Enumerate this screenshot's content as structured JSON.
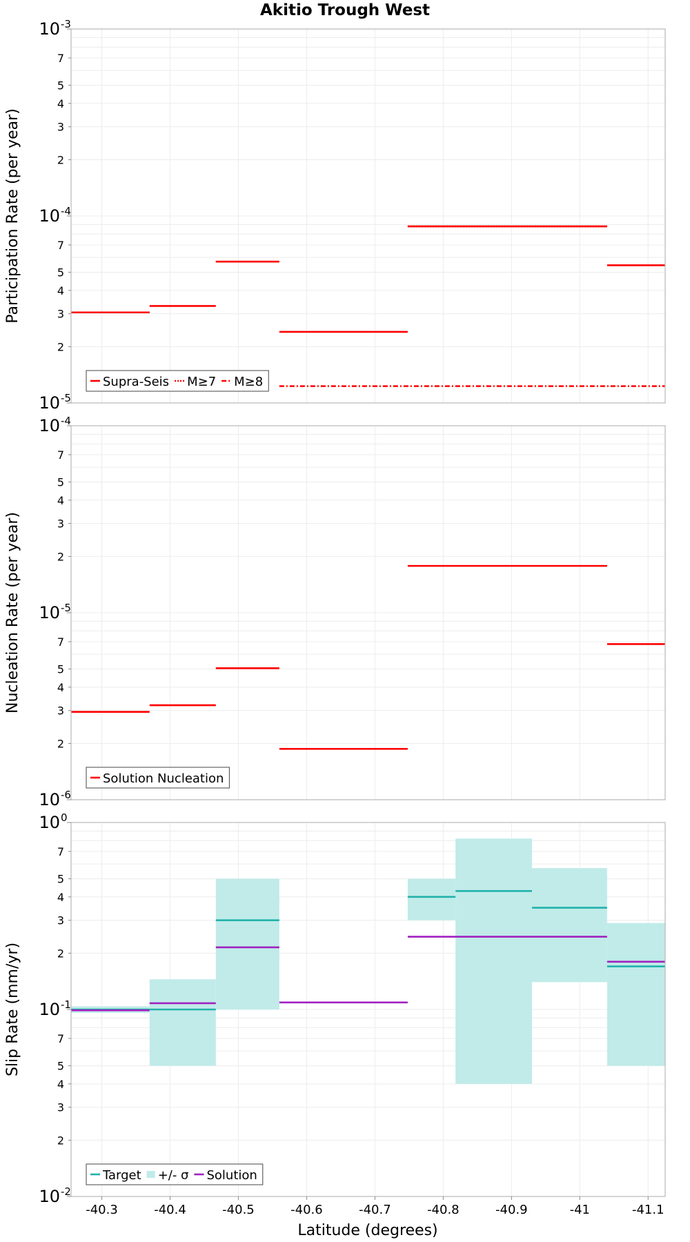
{
  "chart_data": [
    {
      "type": "line",
      "title": "Akitio Trough West",
      "ylabel": "Participation Rate (per year)",
      "xlabel": "",
      "yscale": "log",
      "ylim": [
        1e-05,
        0.001
      ],
      "xlim": [
        -40.255,
        -41.125
      ],
      "x_ticks": [
        -40.3,
        -40.4,
        -40.5,
        -40.6,
        -40.7,
        -40.8,
        -40.9,
        -41,
        -41.1
      ],
      "y_decades": [
        -5,
        -4,
        -3
      ],
      "y_minor_ticks": [
        2,
        3,
        4,
        5,
        7
      ],
      "grid": true,
      "legend": {
        "placement": "bottom-left",
        "entries": [
          "Supra-Seis",
          "M≥7",
          "M≥8"
        ]
      },
      "series": [
        {
          "name": "Supra-Seis",
          "color": "#ff0000",
          "style": "solid",
          "segments": [
            {
              "x": [
                -40.255,
                -40.37
              ],
              "y": 3.05e-05
            },
            {
              "x": [
                -40.37,
                -40.467
              ],
              "y": 3.3e-05
            },
            {
              "x": [
                -40.467,
                -40.56
              ],
              "y": 5.7e-05
            },
            {
              "x": [
                -40.56,
                -40.748
              ],
              "y": 2.4e-05
            },
            {
              "x": [
                -40.748,
                -41.04
              ],
              "y": 8.8e-05
            },
            {
              "x": [
                -41.04,
                -41.125
              ],
              "y": 5.45e-05
            }
          ]
        },
        {
          "name": "M≥7",
          "color": "#ff0000",
          "style": "dotted",
          "segments": [
            {
              "x": [
                -40.255,
                -40.37
              ],
              "y": 3.05e-05
            },
            {
              "x": [
                -40.467,
                -40.56
              ],
              "y": 5.7e-05
            },
            {
              "x": [
                -40.748,
                -41.04
              ],
              "y": 8.8e-05
            }
          ]
        },
        {
          "name": "M≥8",
          "color": "#ff0000",
          "style": "dashdot",
          "segments": [
            {
              "x": [
                -40.56,
                -41.125
              ],
              "y": 1.23e-05
            }
          ]
        }
      ]
    },
    {
      "type": "line",
      "title": "",
      "ylabel": "Nucleation Rate (per year)",
      "xlabel": "",
      "yscale": "log",
      "ylim": [
        1e-06,
        0.0001
      ],
      "xlim": [
        -40.255,
        -41.125
      ],
      "x_ticks": [
        -40.3,
        -40.4,
        -40.5,
        -40.6,
        -40.7,
        -40.8,
        -40.9,
        -41,
        -41.1
      ],
      "y_decades": [
        -6,
        -5,
        -4
      ],
      "y_minor_ticks": [
        2,
        3,
        4,
        5,
        7
      ],
      "grid": true,
      "legend": {
        "placement": "bottom-left",
        "entries": [
          "Solution Nucleation"
        ]
      },
      "series": [
        {
          "name": "Solution Nucleation",
          "color": "#ff0000",
          "style": "solid",
          "segments": [
            {
              "x": [
                -40.255,
                -40.37
              ],
              "y": 2.95e-06
            },
            {
              "x": [
                -40.37,
                -40.467
              ],
              "y": 3.2e-06
            },
            {
              "x": [
                -40.467,
                -40.56
              ],
              "y": 5.05e-06
            },
            {
              "x": [
                -40.56,
                -40.748
              ],
              "y": 1.87e-06
            },
            {
              "x": [
                -40.748,
                -41.04
              ],
              "y": 1.78e-05
            },
            {
              "x": [
                -41.04,
                -41.125
              ],
              "y": 6.8e-06
            }
          ]
        }
      ]
    },
    {
      "type": "line",
      "title": "",
      "ylabel": "Slip Rate (mm/yr)",
      "xlabel": "Latitude (degrees)",
      "yscale": "log",
      "ylim": [
        0.01,
        1
      ],
      "xlim": [
        -40.255,
        -41.125
      ],
      "x_ticks": [
        -40.3,
        -40.4,
        -40.5,
        -40.6,
        -40.7,
        -40.8,
        -40.9,
        -41,
        -41.1
      ],
      "y_decades": [
        -2,
        -1,
        0
      ],
      "y_minor_ticks": [
        2,
        3,
        4,
        5,
        7
      ],
      "grid": true,
      "legend": {
        "placement": "bottom-left",
        "entries": [
          "Target",
          "+/- σ",
          "Solution"
        ]
      },
      "bands": {
        "name": "+/- σ",
        "color": "#c0ebe9",
        "segments": [
          {
            "x": [
              -40.255,
              -40.37
            ],
            "y": [
              0.096,
              0.104
            ]
          },
          {
            "x": [
              -40.37,
              -40.467
            ],
            "y": [
              0.05,
              0.145
            ]
          },
          {
            "x": [
              -40.467,
              -40.56
            ],
            "y": [
              0.1,
              0.5
            ]
          },
          {
            "x": [
              -40.748,
              -40.818
            ],
            "y": [
              0.3,
              0.5
            ]
          },
          {
            "x": [
              -40.818,
              -40.93
            ],
            "y": [
              0.04,
              0.82
            ]
          },
          {
            "x": [
              -40.93,
              -41.04
            ],
            "y": [
              0.14,
              0.57
            ]
          },
          {
            "x": [
              -41.04,
              -41.125
            ],
            "y": [
              0.05,
              0.29
            ]
          }
        ]
      },
      "series": [
        {
          "name": "Target",
          "color": "#20b2aa",
          "style": "solid",
          "segments": [
            {
              "x": [
                -40.255,
                -40.37
              ],
              "y": 0.1
            },
            {
              "x": [
                -40.37,
                -40.467
              ],
              "y": 0.1
            },
            {
              "x": [
                -40.467,
                -40.56
              ],
              "y": 0.3
            },
            {
              "x": [
                -40.748,
                -40.818
              ],
              "y": 0.4
            },
            {
              "x": [
                -40.818,
                -40.93
              ],
              "y": 0.43
            },
            {
              "x": [
                -40.93,
                -41.04
              ],
              "y": 0.35
            },
            {
              "x": [
                -41.04,
                -41.125
              ],
              "y": 0.17
            }
          ]
        },
        {
          "name": "Solution",
          "color": "#a020c0",
          "style": "solid",
          "segments": [
            {
              "x": [
                -40.255,
                -40.37
              ],
              "y": 0.099
            },
            {
              "x": [
                -40.37,
                -40.467
              ],
              "y": 0.108
            },
            {
              "x": [
                -40.467,
                -40.56
              ],
              "y": 0.215
            },
            {
              "x": [
                -40.56,
                -40.748
              ],
              "y": 0.109
            },
            {
              "x": [
                -40.748,
                -41.04
              ],
              "y": 0.245
            },
            {
              "x": [
                -41.04,
                -41.125
              ],
              "y": 0.18
            }
          ]
        }
      ]
    }
  ]
}
